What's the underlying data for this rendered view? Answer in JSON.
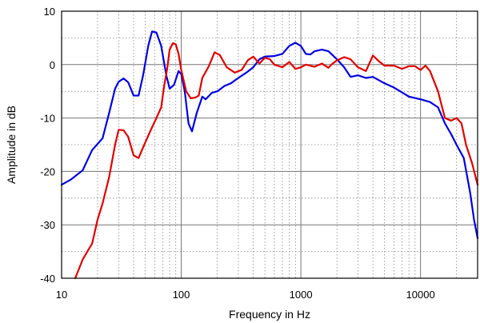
{
  "chart_data": {
    "type": "line",
    "xlabel": "Frequency in Hz",
    "ylabel": "Amplitude in dB",
    "xscale": "log",
    "xlim": [
      10,
      30000
    ],
    "ylim": [
      -40,
      10
    ],
    "grid": true,
    "x_ticks": [
      {
        "value": 10,
        "label": "10"
      },
      {
        "value": 100,
        "label": "100"
      },
      {
        "value": 1000,
        "label": "1000"
      },
      {
        "value": 10000,
        "label": "10000"
      }
    ],
    "y_ticks": [
      {
        "value": 10,
        "label": "10"
      },
      {
        "value": 0,
        "label": "0"
      },
      {
        "value": -10,
        "label": "-10"
      },
      {
        "value": -20,
        "label": "-20"
      },
      {
        "value": -30,
        "label": "-30"
      },
      {
        "value": -40,
        "label": "-40"
      }
    ],
    "series": [
      {
        "color": "#0000e0",
        "points": [
          [
            10,
            -22.5
          ],
          [
            12,
            -21.5
          ],
          [
            15,
            -19.8
          ],
          [
            18,
            -16
          ],
          [
            22,
            -13.8
          ],
          [
            25,
            -9
          ],
          [
            28,
            -4.5
          ],
          [
            30,
            -3.2
          ],
          [
            33,
            -2.6
          ],
          [
            36,
            -3.3
          ],
          [
            40,
            -5.8
          ],
          [
            44,
            -5.8
          ],
          [
            48,
            -2
          ],
          [
            53,
            3.5
          ],
          [
            57,
            6.2
          ],
          [
            62,
            6
          ],
          [
            68,
            3.5
          ],
          [
            75,
            -2
          ],
          [
            80,
            -4.5
          ],
          [
            87,
            -3.8
          ],
          [
            95,
            -1.2
          ],
          [
            100,
            -1.8
          ],
          [
            107,
            -5
          ],
          [
            115,
            -11
          ],
          [
            123,
            -12.5
          ],
          [
            135,
            -9
          ],
          [
            150,
            -6
          ],
          [
            160,
            -6.5
          ],
          [
            180,
            -5.3
          ],
          [
            200,
            -5
          ],
          [
            230,
            -4
          ],
          [
            260,
            -3.5
          ],
          [
            300,
            -2.5
          ],
          [
            350,
            -1.5
          ],
          [
            400,
            -0.5
          ],
          [
            450,
            1
          ],
          [
            500,
            1.5
          ],
          [
            600,
            1.6
          ],
          [
            700,
            2
          ],
          [
            800,
            3.5
          ],
          [
            900,
            4.1
          ],
          [
            1000,
            3.5
          ],
          [
            1100,
            2
          ],
          [
            1200,
            1.9
          ],
          [
            1300,
            2.5
          ],
          [
            1500,
            2.8
          ],
          [
            1700,
            2.5
          ],
          [
            2000,
            1
          ],
          [
            2300,
            -0.5
          ],
          [
            2600,
            -2.3
          ],
          [
            3000,
            -2
          ],
          [
            3500,
            -2.5
          ],
          [
            4000,
            -2.3
          ],
          [
            5000,
            -3.5
          ],
          [
            6000,
            -4.3
          ],
          [
            7000,
            -5.2
          ],
          [
            8000,
            -6
          ],
          [
            10000,
            -6.5
          ],
          [
            12000,
            -7
          ],
          [
            14000,
            -8
          ],
          [
            16000,
            -11
          ],
          [
            18000,
            -13
          ],
          [
            20000,
            -15
          ],
          [
            23000,
            -17.5
          ],
          [
            26000,
            -24
          ],
          [
            28000,
            -29
          ],
          [
            30000,
            -32.5
          ]
        ]
      },
      {
        "color": "#e00000",
        "points": [
          [
            13,
            -40
          ],
          [
            15,
            -36.5
          ],
          [
            18,
            -33.5
          ],
          [
            20,
            -29
          ],
          [
            22,
            -26
          ],
          [
            25,
            -21
          ],
          [
            28,
            -15
          ],
          [
            30,
            -12.2
          ],
          [
            33,
            -12.3
          ],
          [
            36,
            -13.5
          ],
          [
            40,
            -17
          ],
          [
            44,
            -17.5
          ],
          [
            48,
            -15.5
          ],
          [
            55,
            -12.5
          ],
          [
            62,
            -10
          ],
          [
            68,
            -8
          ],
          [
            72,
            -4
          ],
          [
            76,
            -1
          ],
          [
            80,
            2.8
          ],
          [
            85,
            4
          ],
          [
            90,
            3.8
          ],
          [
            95,
            2
          ],
          [
            100,
            -1
          ],
          [
            110,
            -5
          ],
          [
            120,
            -6.3
          ],
          [
            130,
            -6.2
          ],
          [
            140,
            -5.8
          ],
          [
            150,
            -2.5
          ],
          [
            170,
            -0.3
          ],
          [
            190,
            2.3
          ],
          [
            210,
            1.8
          ],
          [
            240,
            -0.5
          ],
          [
            280,
            -1.5
          ],
          [
            320,
            -1
          ],
          [
            360,
            0.8
          ],
          [
            400,
            1.5
          ],
          [
            450,
            0.2
          ],
          [
            500,
            1.3
          ],
          [
            550,
            1
          ],
          [
            600,
            0
          ],
          [
            700,
            -0.5
          ],
          [
            800,
            0.5
          ],
          [
            900,
            -0.8
          ],
          [
            1000,
            -0.5
          ],
          [
            1100,
            0
          ],
          [
            1300,
            -0.4
          ],
          [
            1500,
            0.2
          ],
          [
            1700,
            -0.6
          ],
          [
            1800,
            0
          ],
          [
            2000,
            0.8
          ],
          [
            2300,
            1.4
          ],
          [
            2600,
            1
          ],
          [
            3000,
            -0.5
          ],
          [
            3500,
            -1.2
          ],
          [
            4000,
            1.7
          ],
          [
            4500,
            0.6
          ],
          [
            5000,
            -0.2
          ],
          [
            6000,
            -0.2
          ],
          [
            7000,
            -0.8
          ],
          [
            8000,
            -0.3
          ],
          [
            9000,
            -0.3
          ],
          [
            10000,
            -1
          ],
          [
            11000,
            -0.2
          ],
          [
            12000,
            -1.2
          ],
          [
            14000,
            -5
          ],
          [
            16000,
            -10
          ],
          [
            18000,
            -10.5
          ],
          [
            20000,
            -10
          ],
          [
            22000,
            -11
          ],
          [
            24000,
            -15
          ],
          [
            27000,
            -18.5
          ],
          [
            30000,
            -22.5
          ]
        ]
      }
    ]
  }
}
